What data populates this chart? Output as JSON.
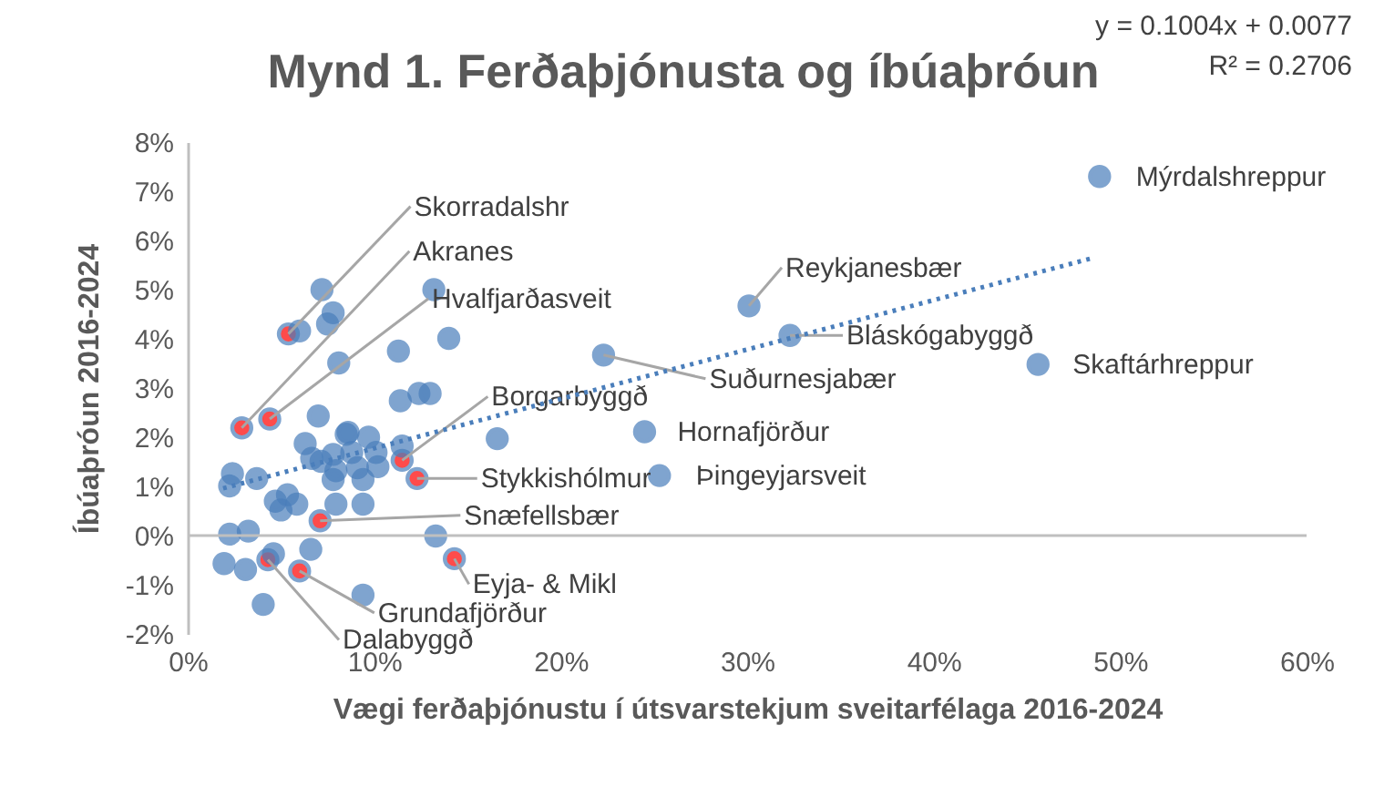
{
  "chart_data": {
    "type": "scatter",
    "title": "Mynd 1. Ferðaþjónusta og íbúaþróun",
    "xlabel": "Vægi ferðaþjónustu í útsvarstekjum sveitarfélaga 2016-2024",
    "ylabel": "Íbúaþróun 2016-2024",
    "annotations": [
      "y = 0.1004x + 0.0077",
      "R² = 0.2706"
    ],
    "xlim": [
      0,
      60
    ],
    "ylim": [
      -2,
      8
    ],
    "xticks": [
      {
        "value": 0,
        "label": "0%"
      },
      {
        "value": 10,
        "label": "10%"
      },
      {
        "value": 20,
        "label": "20%"
      },
      {
        "value": 30,
        "label": "30%"
      },
      {
        "value": 40,
        "label": "40%"
      },
      {
        "value": 50,
        "label": "50%"
      },
      {
        "value": 60,
        "label": "60%"
      }
    ],
    "yticks": [
      {
        "value": -2,
        "label": "-2%"
      },
      {
        "value": -1,
        "label": "-1%"
      },
      {
        "value": 0,
        "label": "0%"
      },
      {
        "value": 1,
        "label": "1%"
      },
      {
        "value": 2,
        "label": "2%"
      },
      {
        "value": 3,
        "label": "3%"
      },
      {
        "value": 4,
        "label": "4%"
      },
      {
        "value": 5,
        "label": "5%"
      },
      {
        "value": 6,
        "label": "6%"
      },
      {
        "value": 7,
        "label": "7%"
      },
      {
        "value": 8,
        "label": "8%"
      }
    ],
    "grid": false,
    "ref_lines": [
      {
        "axis": "y",
        "value": 0,
        "color": "#bfbfbf"
      }
    ],
    "series": [
      {
        "marker": "circle",
        "color": "#4a7ebb",
        "x": [
          48.9,
          30.1,
          32.3,
          45.6,
          22.3,
          24.5,
          25.3,
          5.4,
          2.9,
          4.4,
          11.5,
          12.3,
          7.1,
          14.3,
          6.0,
          4.3,
          7.2,
          13.2,
          7.8,
          7.5,
          6.0,
          14.0,
          11.3,
          8.1,
          11.4,
          12.4,
          13.0,
          16.6,
          7.0,
          8.5,
          9.7,
          6.3,
          7.15,
          7.8,
          7.95,
          8.8,
          9.1,
          10.1,
          10.2,
          11.5,
          7.8,
          9.4,
          7.95,
          9.4,
          2.4,
          2.25,
          3.7,
          4.7,
          5.35,
          5.85,
          5.0,
          2.25,
          3.25,
          13.3,
          1.95,
          3.1,
          4.6,
          6.6,
          9.4,
          4.05,
          6.65,
          8.6
        ],
        "values": [
          7.3,
          4.67,
          4.07,
          3.48,
          3.67,
          2.11,
          1.22,
          4.1,
          2.19,
          2.37,
          1.53,
          1.16,
          0.3,
          -0.47,
          -0.72,
          -0.49,
          5.0,
          5.0,
          4.53,
          4.3,
          4.16,
          4.01,
          3.75,
          3.51,
          2.74,
          2.89,
          2.89,
          1.97,
          2.43,
          2.06,
          2.0,
          1.87,
          1.51,
          1.65,
          1.32,
          1.69,
          1.38,
          1.69,
          1.4,
          1.82,
          1.14,
          1.14,
          0.64,
          0.64,
          1.26,
          1.01,
          1.16,
          0.7,
          0.83,
          0.64,
          0.52,
          0.03,
          0.09,
          -0.01,
          -0.57,
          -0.69,
          -0.37,
          -0.28,
          -1.21,
          -1.4,
          1.57,
          2.1
        ],
        "colors": [
          "#4a7ebb",
          "#4a7ebb",
          "#4a7ebb",
          "#4a7ebb",
          "#4a7ebb",
          "#4a7ebb",
          "#4a7ebb",
          "#ff0000",
          "#ff0000",
          "#ff0000",
          "#ff0000",
          "#ff0000",
          "#ff0000",
          "#ff0000",
          "#ff0000",
          "#ff0000",
          "#4a7ebb",
          "#4a7ebb",
          "#4a7ebb",
          "#4a7ebb",
          "#4a7ebb",
          "#4a7ebb",
          "#4a7ebb",
          "#4a7ebb",
          "#4a7ebb",
          "#4a7ebb",
          "#4a7ebb",
          "#4a7ebb",
          "#4a7ebb",
          "#4a7ebb",
          "#4a7ebb",
          "#4a7ebb",
          "#4a7ebb",
          "#4a7ebb",
          "#4a7ebb",
          "#4a7ebb",
          "#4a7ebb",
          "#4a7ebb",
          "#4a7ebb",
          "#4a7ebb",
          "#4a7ebb",
          "#4a7ebb",
          "#4a7ebb",
          "#4a7ebb",
          "#4a7ebb",
          "#4a7ebb",
          "#4a7ebb",
          "#4a7ebb",
          "#4a7ebb",
          "#4a7ebb",
          "#4a7ebb",
          "#4a7ebb",
          "#4a7ebb",
          "#4a7ebb",
          "#4a7ebb",
          "#4a7ebb",
          "#4a7ebb",
          "#4a7ebb",
          "#4a7ebb",
          "#4a7ebb",
          "#4a7ebb",
          "#4a7ebb"
        ],
        "value_labels": [
          "Mýrdalshreppur",
          "Reykjanesbær",
          "Bláskógabyggð",
          "Skaftárhreppur",
          "Suðurnesjabær",
          "Hornafjörður",
          "Þingeyjarsveit",
          "Skorradalshr",
          "Akranes",
          "Hvalfjarðasveit",
          "Borgarbyggð",
          "Stykkishólmur",
          "Snæfellsbær",
          "Eyja- & Mikl",
          "Grundafjörður",
          "Dalabyggð",
          null,
          null,
          null,
          null,
          null,
          null,
          null,
          null,
          null,
          null,
          null,
          null,
          null,
          null,
          null,
          null,
          null,
          null,
          null,
          null,
          null,
          null,
          null,
          null,
          null,
          null,
          null,
          null,
          null,
          null,
          null,
          null,
          null,
          null,
          null,
          null,
          null,
          null,
          null,
          null,
          null,
          null,
          null,
          null,
          null,
          null
        ]
      },
      {
        "type": "line",
        "color": "#4a7ebb",
        "line_style": "dotted",
        "x": [
          1.9,
          48.6
        ],
        "values": [
          0.96,
          5.65
        ]
      }
    ]
  }
}
